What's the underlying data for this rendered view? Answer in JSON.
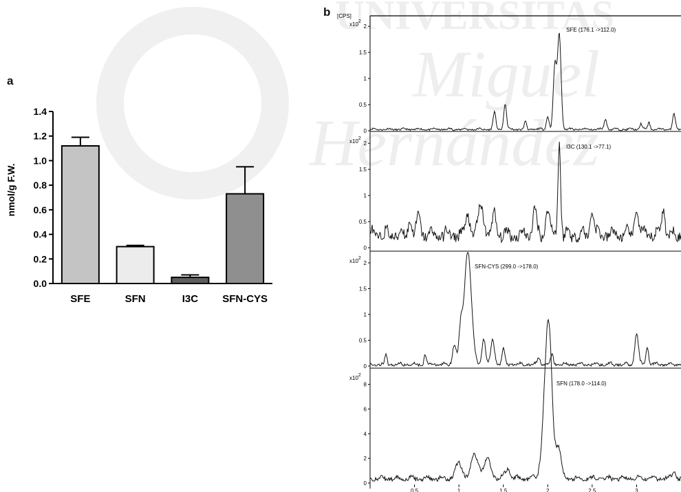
{
  "watermark": {
    "line1": "UNIVERSITAS",
    "line2": "Miguel",
    "line3": "Hernández"
  },
  "panels": {
    "a": "a",
    "b": "b"
  },
  "chart_data": [
    {
      "type": "bar",
      "ylabel": "nmol/g F.W.",
      "categories": [
        "SFE",
        "SFN",
        "I3C",
        "SFN-CYS"
      ],
      "values": [
        1.12,
        0.3,
        0.05,
        0.73
      ],
      "errors": [
        0.07,
        0.01,
        0.02,
        0.22
      ],
      "colors": [
        "#c4c4c4",
        "#ececec",
        "#5e5e5e",
        "#8f8f8f"
      ],
      "ylim": [
        0,
        1.4
      ],
      "yticks": [
        "0.0",
        "0.2",
        "0.4",
        "0.6",
        "0.8",
        "1.0",
        "1.2",
        "1.4"
      ],
      "grid": false
    },
    {
      "type": "line",
      "unit_label": "[CPS]",
      "xticks": [
        "0.5",
        "1",
        "1.5",
        "2",
        "2.5",
        "3"
      ],
      "traces": [
        {
          "annotation": "SFE (176.1 ->112.0)",
          "multiplier": "x10",
          "exponent": "2",
          "yticks": [
            "0",
            "0.5",
            "1",
            "1.5",
            "2"
          ],
          "ymax": 2.2,
          "baseline": 0.02,
          "noise": 0.03,
          "peaks": [
            [
              1.4,
              0.32,
              0.015
            ],
            [
              1.52,
              0.5,
              0.015
            ],
            [
              1.75,
              0.15,
              0.012
            ],
            [
              2.0,
              0.25,
              0.015
            ],
            [
              2.08,
              1.2,
              0.018
            ],
            [
              2.13,
              1.83,
              0.02
            ],
            [
              2.65,
              0.2,
              0.015
            ],
            [
              3.05,
              0.12,
              0.012
            ],
            [
              3.14,
              0.14,
              0.012
            ],
            [
              3.42,
              0.3,
              0.015
            ]
          ]
        },
        {
          "annotation": "I3C (130.1 ->77.1)",
          "multiplier": "x10",
          "exponent": "2",
          "yticks": [
            "0",
            "0.5",
            "1",
            "1.5",
            "2"
          ],
          "ymax": 2.2,
          "baseline": 0.2,
          "noise": 0.2,
          "peaks": [
            [
              0.45,
              0.3,
              0.02
            ],
            [
              0.55,
              0.35,
              0.02
            ],
            [
              1.1,
              0.45,
              0.02
            ],
            [
              1.25,
              0.55,
              0.03
            ],
            [
              1.4,
              0.4,
              0.02
            ],
            [
              1.85,
              0.5,
              0.02
            ],
            [
              2.0,
              0.55,
              0.02
            ],
            [
              2.13,
              1.8,
              0.015
            ],
            [
              2.5,
              0.5,
              0.02
            ],
            [
              3.0,
              0.55,
              0.02
            ],
            [
              3.3,
              0.5,
              0.02
            ]
          ]
        },
        {
          "annotation": "SFN-CYS (299.0 ->178.0)",
          "multiplier": "x10",
          "exponent": "2",
          "yticks": [
            "0",
            "0.5",
            "1",
            "1.5",
            "2"
          ],
          "ymax": 2.2,
          "baseline": 0.02,
          "noise": 0.05,
          "peaks": [
            [
              0.18,
              0.2,
              0.012
            ],
            [
              0.62,
              0.2,
              0.012
            ],
            [
              0.95,
              0.4,
              0.02
            ],
            [
              1.02,
              0.6,
              0.02
            ],
            [
              1.1,
              2.2,
              0.04
            ],
            [
              1.28,
              0.5,
              0.02
            ],
            [
              1.38,
              0.5,
              0.02
            ],
            [
              1.5,
              0.3,
              0.015
            ],
            [
              1.9,
              0.15,
              0.015
            ],
            [
              2.05,
              0.18,
              0.015
            ],
            [
              3.0,
              0.6,
              0.02
            ],
            [
              3.12,
              0.35,
              0.015
            ]
          ]
        },
        {
          "annotation": "SFN (178.0 ->114.0)",
          "multiplier": "x10",
          "exponent": "2",
          "yticks": [
            "0",
            "2",
            "4",
            "6",
            "8"
          ],
          "ymax": 9.2,
          "baseline": 0.3,
          "noise": 0.3,
          "peaks": [
            [
              1.0,
              1.2,
              0.04
            ],
            [
              1.18,
              1.9,
              0.04
            ],
            [
              1.32,
              1.5,
              0.04
            ],
            [
              1.55,
              0.8,
              0.03
            ],
            [
              1.98,
              6.2,
              0.04
            ],
            [
              2.02,
              8.3,
              0.035
            ],
            [
              2.12,
              2.5,
              0.03
            ],
            [
              3.42,
              0.7,
              0.02
            ]
          ]
        }
      ]
    }
  ]
}
